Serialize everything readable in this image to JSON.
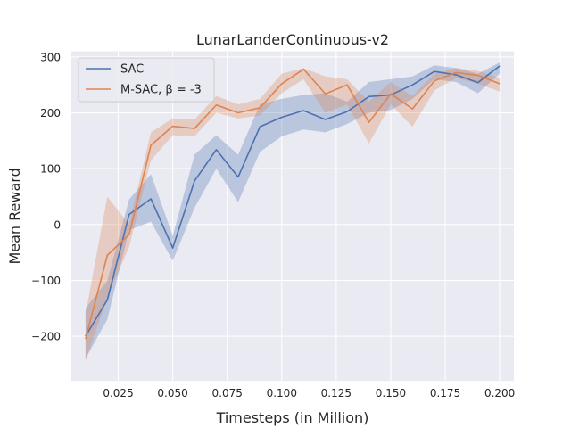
{
  "chart_data": {
    "type": "line",
    "title": "LunarLanderContinuous-v2",
    "xlabel": "Timesteps (in Million)",
    "ylabel": "Mean Reward",
    "xlim": [
      0.0035,
      0.2065
    ],
    "ylim": [
      -280,
      310
    ],
    "xticks": [
      0.025,
      0.05,
      0.075,
      0.1,
      0.125,
      0.15,
      0.175,
      0.2
    ],
    "xtick_labels": [
      "0.025",
      "0.050",
      "0.075",
      "0.100",
      "0.125",
      "0.150",
      "0.175",
      "0.200"
    ],
    "yticks": [
      -200,
      -100,
      0,
      100,
      200,
      300
    ],
    "ytick_labels": [
      "−200",
      "−100",
      "0",
      "100",
      "200",
      "300"
    ],
    "grid": true,
    "legend_position": "top-left",
    "x": [
      0.01,
      0.02,
      0.03,
      0.04,
      0.05,
      0.06,
      0.07,
      0.08,
      0.09,
      0.1,
      0.11,
      0.12,
      0.13,
      0.14,
      0.15,
      0.16,
      0.17,
      0.18,
      0.19,
      0.2
    ],
    "series": [
      {
        "name": "SAC",
        "color": "#4c72b0",
        "band_color": "rgba(76,114,176,0.30)",
        "values": [
          -200,
          -135,
          18,
          46,
          -42,
          78,
          134,
          85,
          175,
          192,
          204,
          188,
          202,
          229,
          232,
          250,
          274,
          268,
          254,
          284
        ],
        "lower": [
          -240,
          -170,
          -10,
          5,
          -65,
          30,
          100,
          40,
          130,
          158,
          170,
          165,
          180,
          200,
          205,
          225,
          260,
          255,
          235,
          270
        ],
        "upper": [
          -150,
          -100,
          45,
          90,
          -20,
          125,
          160,
          125,
          215,
          225,
          232,
          235,
          220,
          255,
          260,
          265,
          285,
          280,
          270,
          290
        ]
      },
      {
        "name": "M-SAC, β = -3",
        "color": "#dd8452",
        "band_color": "rgba(221,132,82,0.30)",
        "values": [
          -205,
          -55,
          -18,
          142,
          176,
          172,
          214,
          200,
          209,
          252,
          278,
          234,
          250,
          183,
          234,
          207,
          257,
          272,
          267,
          252
        ],
        "lower": [
          -245,
          -130,
          -40,
          115,
          160,
          158,
          200,
          190,
          195,
          235,
          260,
          200,
          215,
          145,
          215,
          175,
          240,
          262,
          252,
          238
        ],
        "upper": [
          -160,
          50,
          0,
          165,
          190,
          188,
          230,
          215,
          225,
          270,
          280,
          265,
          260,
          220,
          255,
          230,
          270,
          280,
          275,
          262
        ]
      }
    ]
  }
}
